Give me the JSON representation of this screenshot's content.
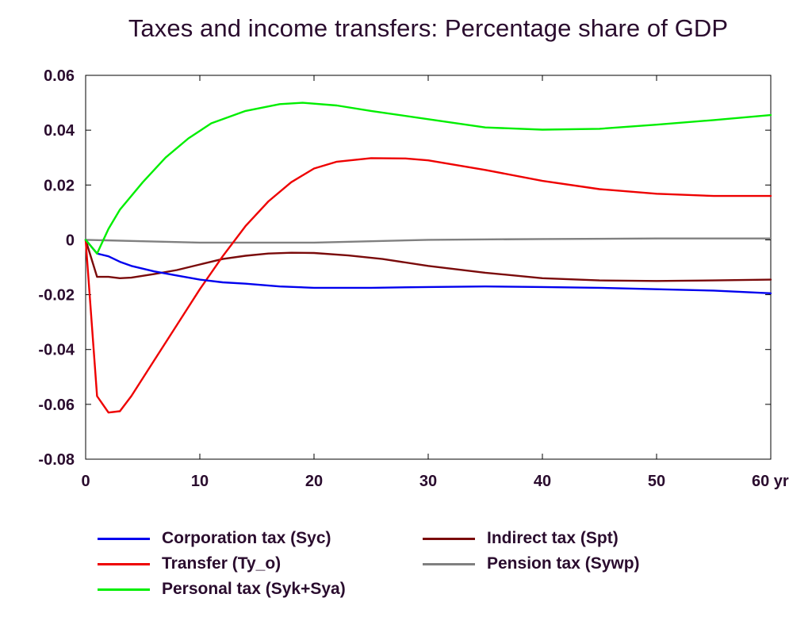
{
  "chart_data": {
    "type": "line",
    "title": "Taxes and income transfers: Percentage share of GDP",
    "xlim": [
      0,
      60
    ],
    "ylim": [
      -0.08,
      0.06
    ],
    "x_ticks": [
      "0",
      "10",
      "20",
      "30",
      "40",
      "50",
      "60 yr"
    ],
    "y_ticks": [
      "0.06",
      "0.04",
      "0.02",
      "0",
      "-0.02",
      "-0.04",
      "-0.06",
      "-0.08"
    ],
    "grid": false,
    "legend_position": "bottom",
    "series": [
      {
        "name": "Corporation tax (Syc)",
        "color": "#0000ee",
        "points": [
          [
            0,
            0
          ],
          [
            1,
            -0.005
          ],
          [
            2,
            -0.006
          ],
          [
            3,
            -0.008
          ],
          [
            4,
            -0.0095
          ],
          [
            6,
            -0.0115
          ],
          [
            8,
            -0.013
          ],
          [
            10,
            -0.0145
          ],
          [
            12,
            -0.0155
          ],
          [
            14,
            -0.016
          ],
          [
            17,
            -0.017
          ],
          [
            20,
            -0.0175
          ],
          [
            25,
            -0.0175
          ],
          [
            30,
            -0.0172
          ],
          [
            35,
            -0.017
          ],
          [
            40,
            -0.0172
          ],
          [
            45,
            -0.0175
          ],
          [
            50,
            -0.018
          ],
          [
            55,
            -0.0185
          ],
          [
            60,
            -0.0195
          ]
        ]
      },
      {
        "name": "Transfer (Ty_o)",
        "color": "#ee0000",
        "points": [
          [
            0,
            0
          ],
          [
            1,
            -0.057
          ],
          [
            2,
            -0.063
          ],
          [
            3,
            -0.0625
          ],
          [
            4,
            -0.057
          ],
          [
            6,
            -0.044
          ],
          [
            8,
            -0.031
          ],
          [
            10,
            -0.018
          ],
          [
            12,
            -0.006
          ],
          [
            14,
            0.005
          ],
          [
            16,
            0.014
          ],
          [
            18,
            0.021
          ],
          [
            20,
            0.026
          ],
          [
            22,
            0.0285
          ],
          [
            25,
            0.0298
          ],
          [
            28,
            0.0297
          ],
          [
            30,
            0.029
          ],
          [
            35,
            0.0255
          ],
          [
            40,
            0.0215
          ],
          [
            45,
            0.0185
          ],
          [
            50,
            0.0168
          ],
          [
            55,
            0.016
          ],
          [
            60,
            0.016
          ]
        ]
      },
      {
        "name": "Personal tax (Syk+Sya)",
        "color": "#00ee00",
        "points": [
          [
            0,
            0
          ],
          [
            1,
            -0.005
          ],
          [
            2,
            0.004
          ],
          [
            3,
            0.011
          ],
          [
            5,
            0.021
          ],
          [
            7,
            0.03
          ],
          [
            9,
            0.037
          ],
          [
            11,
            0.0425
          ],
          [
            14,
            0.047
          ],
          [
            17,
            0.0495
          ],
          [
            19,
            0.05
          ],
          [
            22,
            0.049
          ],
          [
            25,
            0.047
          ],
          [
            30,
            0.044
          ],
          [
            35,
            0.041
          ],
          [
            40,
            0.0402
          ],
          [
            45,
            0.0405
          ],
          [
            50,
            0.042
          ],
          [
            55,
            0.0437
          ],
          [
            60,
            0.0455
          ]
        ]
      },
      {
        "name": "Indirect tax (Spt)",
        "color": "#7a0a0a",
        "points": [
          [
            0,
            0
          ],
          [
            1,
            -0.0135
          ],
          [
            2,
            -0.0135
          ],
          [
            3,
            -0.014
          ],
          [
            4,
            -0.0138
          ],
          [
            6,
            -0.0125
          ],
          [
            8,
            -0.011
          ],
          [
            10,
            -0.009
          ],
          [
            12,
            -0.007
          ],
          [
            14,
            -0.0058
          ],
          [
            16,
            -0.005
          ],
          [
            18,
            -0.0047
          ],
          [
            20,
            -0.0048
          ],
          [
            23,
            -0.0057
          ],
          [
            26,
            -0.007
          ],
          [
            30,
            -0.0095
          ],
          [
            35,
            -0.012
          ],
          [
            40,
            -0.014
          ],
          [
            45,
            -0.0148
          ],
          [
            50,
            -0.015
          ],
          [
            55,
            -0.0148
          ],
          [
            60,
            -0.0145
          ]
        ]
      },
      {
        "name": "Pension tax (Sywp)",
        "color": "#808080",
        "points": [
          [
            0,
            0
          ],
          [
            5,
            -0.0005
          ],
          [
            10,
            -0.001
          ],
          [
            20,
            -0.001
          ],
          [
            30,
            0
          ],
          [
            40,
            0.0003
          ],
          [
            50,
            0.0005
          ],
          [
            60,
            0.0005
          ]
        ]
      }
    ]
  },
  "legend": {
    "items": [
      {
        "label": "Corporation tax (Syc)",
        "color": "#0000ee"
      },
      {
        "label": "Transfer (Ty_o)",
        "color": "#ee0000"
      },
      {
        "label": "Personal tax (Syk+Sya)",
        "color": "#00ee00"
      },
      {
        "label": "Indirect tax (Spt)",
        "color": "#7a0a0a"
      },
      {
        "label": "Pension tax (Sywp)",
        "color": "#808080"
      }
    ]
  }
}
